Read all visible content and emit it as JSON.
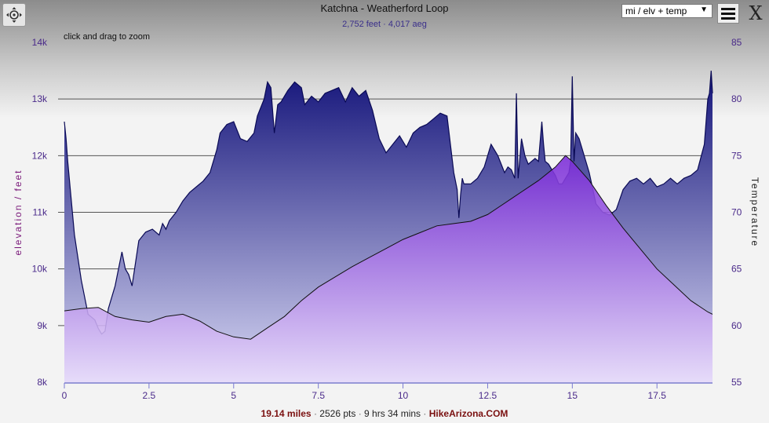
{
  "title": "Katchna - Weatherford Loop",
  "subtitle": "2,752 feet · 4,017 aeg",
  "hint": "click and drag to zoom",
  "controls": {
    "select_value": "mi / elv + temp",
    "zoom_icon": "crosshair-move-icon",
    "menu_icon": "hamburger-menu-icon",
    "close_label": "X"
  },
  "footer": {
    "distance": "19.14 miles",
    "points": "2526 pts",
    "duration": "9 hrs 34 mins",
    "site": "HikeArizona.COM",
    "separator": "·"
  },
  "colors": {
    "elevation_fill_top": "#14147a",
    "elevation_fill_bottom": "#d8d8f4",
    "temperature_fill_top": "#7a2ad8",
    "temperature_fill_bottom": "#e8dcfa",
    "grid": "#555555",
    "axis_label": "#4a2a8a"
  },
  "chart_data": {
    "type": "area",
    "x_axis": {
      "ticks": [
        0,
        2.5,
        5,
        7.5,
        10,
        12.5,
        15,
        17.5
      ],
      "tick_labels": [
        "0",
        "2.5",
        "5",
        "7.5",
        "10",
        "12.5",
        "15",
        "17.5"
      ],
      "range": [
        0,
        19.14
      ]
    },
    "y_left": {
      "label": "elevation / feet",
      "ticks": [
        8000,
        9000,
        10000,
        11000,
        12000,
        13000,
        14000
      ],
      "tick_labels": [
        "8k",
        "9k",
        "10k",
        "11k",
        "12k",
        "13k",
        "14k"
      ],
      "range": [
        8000,
        14000
      ]
    },
    "y_right": {
      "label": "Temperature",
      "ticks": [
        55,
        60,
        65,
        70,
        75,
        80,
        85
      ],
      "tick_labels": [
        "55",
        "60",
        "65",
        "70",
        "75",
        "80",
        "85"
      ],
      "range": [
        55,
        85
      ]
    },
    "grid": true,
    "series": [
      {
        "name": "elevation",
        "axis": "left",
        "x": [
          0,
          0.05,
          0.1,
          0.3,
          0.5,
          0.7,
          0.9,
          1.0,
          1.1,
          1.2,
          1.3,
          1.4,
          1.5,
          1.6,
          1.7,
          1.8,
          1.9,
          2.0,
          2.1,
          2.2,
          2.4,
          2.6,
          2.8,
          2.9,
          3.0,
          3.1,
          3.3,
          3.5,
          3.7,
          3.9,
          4.1,
          4.3,
          4.5,
          4.6,
          4.8,
          5.0,
          5.2,
          5.4,
          5.6,
          5.7,
          5.9,
          6.0,
          6.1,
          6.2,
          6.3,
          6.4,
          6.5,
          6.6,
          6.8,
          7.0,
          7.1,
          7.3,
          7.5,
          7.7,
          7.9,
          8.1,
          8.3,
          8.5,
          8.7,
          8.9,
          9.1,
          9.3,
          9.5,
          9.7,
          9.9,
          10.1,
          10.3,
          10.5,
          10.7,
          10.9,
          11.1,
          11.3,
          11.5,
          11.6,
          11.65,
          11.7,
          11.75,
          11.8,
          12.0,
          12.2,
          12.4,
          12.6,
          12.8,
          13.0,
          13.1,
          13.2,
          13.3,
          13.35,
          13.4,
          13.5,
          13.6,
          13.7,
          13.8,
          13.9,
          14.0,
          14.1,
          14.15,
          14.2,
          14.3,
          14.4,
          14.5,
          14.6,
          14.7,
          14.8,
          14.9,
          14.95,
          15.0,
          15.05,
          15.1,
          15.2,
          15.3,
          15.5,
          15.7,
          15.9,
          16.1,
          16.3,
          16.5,
          16.7,
          16.9,
          17.1,
          17.3,
          17.5,
          17.7,
          17.9,
          18.1,
          18.3,
          18.5,
          18.7,
          18.9,
          19.0,
          19.05,
          19.1,
          19.14
        ],
        "y": [
          12600,
          12300,
          11900,
          10600,
          9800,
          9200,
          9100,
          8950,
          8850,
          8900,
          9300,
          9500,
          9700,
          10000,
          10300,
          10000,
          9900,
          9700,
          10100,
          10500,
          10650,
          10700,
          10600,
          10800,
          10700,
          10850,
          11000,
          11200,
          11350,
          11450,
          11550,
          11700,
          12100,
          12400,
          12550,
          12600,
          12300,
          12250,
          12400,
          12700,
          13000,
          13300,
          13200,
          12400,
          12900,
          12950,
          13050,
          13150,
          13300,
          13200,
          12900,
          13050,
          12950,
          13100,
          13150,
          13200,
          12950,
          13200,
          13050,
          13150,
          12800,
          12300,
          12050,
          12200,
          12350,
          12150,
          12400,
          12500,
          12550,
          12650,
          12750,
          12700,
          11700,
          11400,
          10900,
          11300,
          11600,
          11500,
          11500,
          11600,
          11800,
          12200,
          12000,
          11700,
          11800,
          11750,
          11600,
          13100,
          11600,
          12300,
          12000,
          11850,
          11900,
          11950,
          11900,
          12600,
          12200,
          11900,
          11850,
          11750,
          11650,
          11500,
          11500,
          11600,
          11700,
          11900,
          13400,
          11900,
          12400,
          12300,
          12100,
          11700,
          11150,
          11000,
          10950,
          11050,
          11400,
          11550,
          11600,
          11500,
          11600,
          11450,
          11500,
          11600,
          11500,
          11600,
          11650,
          11750,
          12200,
          13000,
          13100,
          13500,
          13100
        ]
      },
      {
        "name": "temperature",
        "axis": "right",
        "x": [
          0,
          0.5,
          1.0,
          1.5,
          2.0,
          2.5,
          3.0,
          3.5,
          4.0,
          4.5,
          5.0,
          5.5,
          6.0,
          6.5,
          7.0,
          7.5,
          8.0,
          8.5,
          9.0,
          9.5,
          10.0,
          10.5,
          11.0,
          11.5,
          12.0,
          12.5,
          13.0,
          13.5,
          14.0,
          14.5,
          14.8,
          15.0,
          15.5,
          16.0,
          16.5,
          17.0,
          17.5,
          18.0,
          18.5,
          19.0,
          19.14
        ],
        "y": [
          61.3,
          61.5,
          61.6,
          60.8,
          60.5,
          60.3,
          60.8,
          61.0,
          60.4,
          59.5,
          59.0,
          58.8,
          59.8,
          60.8,
          62.2,
          63.4,
          64.3,
          65.2,
          66.0,
          66.8,
          67.6,
          68.2,
          68.8,
          69.0,
          69.2,
          69.8,
          70.8,
          71.8,
          72.8,
          74.0,
          75.0,
          74.5,
          72.8,
          70.6,
          68.6,
          66.8,
          65.0,
          63.6,
          62.2,
          61.2,
          61.0
        ]
      }
    ]
  }
}
